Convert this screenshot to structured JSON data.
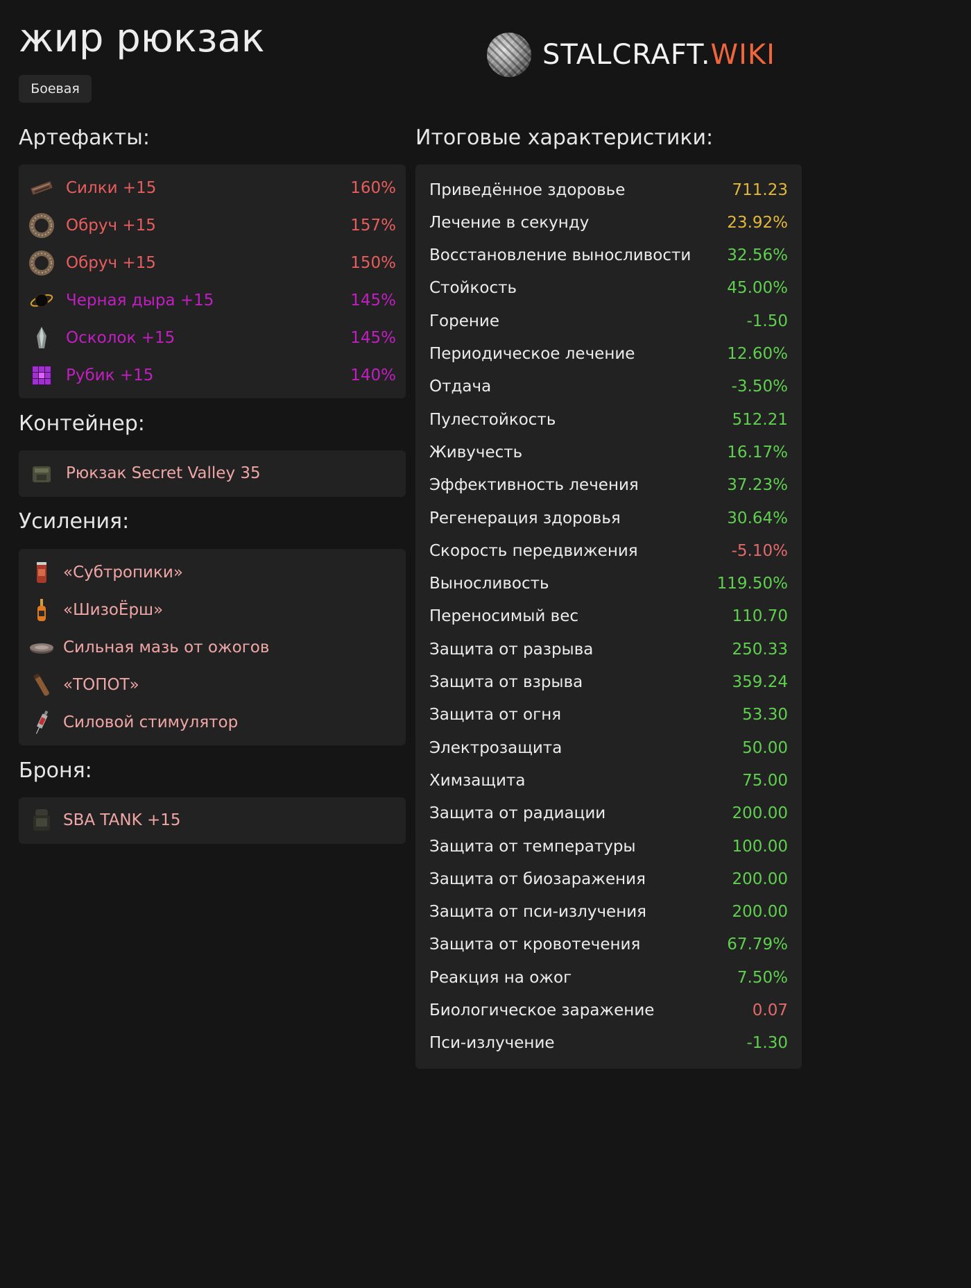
{
  "header": {
    "title": "жир рюкзак",
    "tag": "Боевая",
    "logo_main": "STALCRAFT.",
    "logo_accent": "WIKI"
  },
  "colors": {
    "legendary": "#e85d5d",
    "exotic": "#c21ec2",
    "item": "#f0a6a6",
    "positive": "#5ed04e",
    "gold": "#e2b83a",
    "negative": "#e36a6a",
    "accent": "#f0663c"
  },
  "artifacts": {
    "heading": "Артефакты:",
    "items": [
      {
        "name": "Силки +15",
        "percent": "160%",
        "icon": "snare-artifact-icon"
      },
      {
        "name": "Обруч +15",
        "percent": "157%",
        "icon": "hoop-artifact-icon"
      },
      {
        "name": "Обруч +15",
        "percent": "150%",
        "icon": "hoop-artifact-icon"
      },
      {
        "name": "Черная дыра +15",
        "percent": "145%",
        "icon": "black-hole-artifact-icon"
      },
      {
        "name": "Осколок +15",
        "percent": "145%",
        "icon": "shard-artifact-icon"
      },
      {
        "name": "Рубик +15",
        "percent": "140%",
        "icon": "rubik-artifact-icon"
      }
    ]
  },
  "container": {
    "heading": "Контейнер:",
    "item": {
      "name": "Рюкзак Secret Valley 35",
      "icon": "backpack-icon"
    }
  },
  "boosts": {
    "heading": "Усиления:",
    "items": [
      {
        "name": "«Субтропики»",
        "icon": "can-icon"
      },
      {
        "name": "«ШизоЁрш»",
        "icon": "bottle-icon"
      },
      {
        "name": "Сильная мазь от ожогов",
        "icon": "ointment-icon"
      },
      {
        "name": "«ТОПОТ»",
        "icon": "drink-icon"
      },
      {
        "name": "Силовой стимулятор",
        "icon": "syringe-icon"
      }
    ]
  },
  "armor": {
    "heading": "Броня:",
    "item": {
      "name": "SBA TANK +15",
      "icon": "armor-icon"
    }
  },
  "stats": {
    "heading": "Итоговые характеристики:",
    "items": [
      {
        "label": "Приведённое здоровье",
        "value": "711.23",
        "tone": "gold"
      },
      {
        "label": "Лечение в секунду",
        "value": "23.92%",
        "tone": "gold"
      },
      {
        "label": "Восстановление выносливости",
        "value": "32.56%",
        "tone": "green"
      },
      {
        "label": "Стойкость",
        "value": "45.00%",
        "tone": "green"
      },
      {
        "label": "Горение",
        "value": "-1.50",
        "tone": "green"
      },
      {
        "label": "Периодическое лечение",
        "value": "12.60%",
        "tone": "green"
      },
      {
        "label": "Отдача",
        "value": "-3.50%",
        "tone": "green"
      },
      {
        "label": "Пулестойкость",
        "value": "512.21",
        "tone": "green"
      },
      {
        "label": "Живучесть",
        "value": "16.17%",
        "tone": "green"
      },
      {
        "label": "Эффективность лечения",
        "value": "37.23%",
        "tone": "green"
      },
      {
        "label": "Регенерация здоровья",
        "value": "30.64%",
        "tone": "green"
      },
      {
        "label": "Скорость передвижения",
        "value": "-5.10%",
        "tone": "neg"
      },
      {
        "label": "Выносливость",
        "value": "119.50%",
        "tone": "green"
      },
      {
        "label": "Переносимый вес",
        "value": "110.70",
        "tone": "green"
      },
      {
        "label": "Защита от разрыва",
        "value": "250.33",
        "tone": "green"
      },
      {
        "label": "Защита от взрыва",
        "value": "359.24",
        "tone": "green"
      },
      {
        "label": "Защита от огня",
        "value": "53.30",
        "tone": "green"
      },
      {
        "label": "Электрозащита",
        "value": "50.00",
        "tone": "green"
      },
      {
        "label": "Химзащита",
        "value": "75.00",
        "tone": "green"
      },
      {
        "label": "Защита от радиации",
        "value": "200.00",
        "tone": "green"
      },
      {
        "label": "Защита от температуры",
        "value": "100.00",
        "tone": "green"
      },
      {
        "label": "Защита от биозаражения",
        "value": "200.00",
        "tone": "green"
      },
      {
        "label": "Защита от пси-излучения",
        "value": "200.00",
        "tone": "green"
      },
      {
        "label": "Защита от кровотечения",
        "value": "67.79%",
        "tone": "green"
      },
      {
        "label": "Реакция на ожог",
        "value": "7.50%",
        "tone": "green"
      },
      {
        "label": "Биологическое заражение",
        "value": "0.07",
        "tone": "neg"
      },
      {
        "label": "Пси-излучение",
        "value": "-1.30",
        "tone": "green"
      }
    ]
  }
}
